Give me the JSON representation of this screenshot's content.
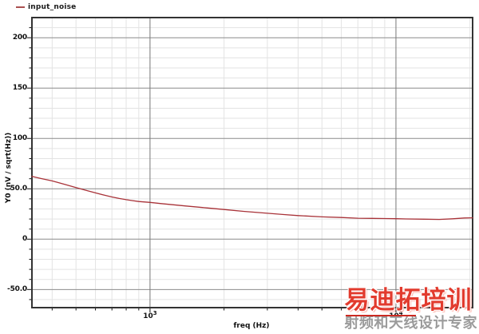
{
  "legend": {
    "label": "input_noise",
    "dash_color": "#aa5050"
  },
  "watermark": {
    "line1": "易迪拓培训",
    "line2": "射频和天线设计专家",
    "line1_color": "#e23b2e",
    "line2_color": "#9b9b9b",
    "underline_color": "#cc2a22"
  },
  "colors": {
    "background": "#ffffff",
    "grid_minor": "#e3e3e3",
    "grid_major": "#8c8c8c",
    "decade_line": "#787878",
    "border": "#333333",
    "tick": "#111111"
  },
  "chart_data": {
    "type": "line",
    "title": "",
    "xlabel": "freq (Hz)",
    "ylabel": "Y0 (nV / sqrt(Hz))",
    "x_scale": "log",
    "xlim": [
      331,
      20500
    ],
    "ylim": [
      -68,
      220
    ],
    "grid": true,
    "legend_position": "top-left",
    "y_major_ticks": [
      {
        "v": 200,
        "label": "200"
      },
      {
        "v": 150,
        "label": "150"
      },
      {
        "v": 100,
        "label": "100"
      },
      {
        "v": 50,
        "label": "50.0"
      },
      {
        "v": 0,
        "label": "0"
      },
      {
        "v": -50,
        "label": "-50.0"
      }
    ],
    "y_minor_step": 10,
    "x_major_ticks": [
      {
        "v": 1000,
        "base": "10",
        "exp": "3"
      },
      {
        "v": 10000,
        "base": "10",
        "exp": "4"
      }
    ],
    "series": [
      {
        "name": "input_noise",
        "color": "#a83238",
        "x": [
          331,
          360,
          400,
          450,
          500,
          550,
          600,
          650,
          700,
          750,
          800,
          850,
          900,
          1000,
          1100,
          1200,
          1400,
          1700,
          2000,
          2400,
          3000,
          3500,
          4000,
          5000,
          6000,
          7000,
          8000,
          9000,
          10000,
          11000,
          13000,
          15000,
          17000,
          19000,
          20500
        ],
        "y": [
          62.3,
          60.2,
          57.8,
          54.4,
          51.2,
          48.4,
          45.9,
          43.8,
          41.9,
          40.4,
          39.2,
          38.2,
          37.4,
          36.5,
          35.4,
          34.5,
          32.9,
          31.0,
          29.4,
          27.6,
          25.7,
          24.4,
          23.4,
          22.1,
          21.5,
          20.8,
          20.6,
          20.5,
          20.3,
          20.1,
          19.8,
          19.6,
          20.2,
          21.0,
          21.2
        ]
      }
    ]
  }
}
